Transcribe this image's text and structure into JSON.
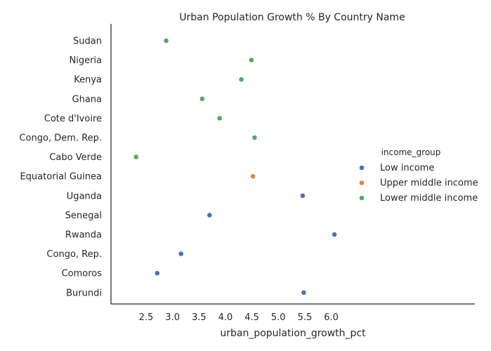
{
  "chart_data": {
    "type": "scatter",
    "title": "Urban Population Growth % By Country Name",
    "xlabel": "urban_population_growth_pct",
    "ylabel": "",
    "xlim": [
      2.1,
      6.3
    ],
    "xticks": [
      "2.5",
      "3.0",
      "3.5",
      "4.0",
      "4.5",
      "5.0",
      "5.5",
      "6.0"
    ],
    "categories": [
      "Sudan",
      "Nigeria",
      "Kenya",
      "Ghana",
      "Cote d'Ivoire",
      "Congo, Dem. Rep.",
      "Cabo Verde",
      "Equatorial Guinea",
      "Uganda",
      "Senegal",
      "Rwanda",
      "Congo, Rep.",
      "Comoros",
      "Burundi"
    ],
    "grid": false,
    "legend": {
      "title": "income_group",
      "placement": "right"
    },
    "series": [
      {
        "name": "Low income",
        "color": "#4c72b0",
        "points": [
          {
            "category": "Uganda",
            "x": 5.46
          },
          {
            "category": "Senegal",
            "x": 3.7
          },
          {
            "category": "Rwanda",
            "x": 6.06
          },
          {
            "category": "Congo, Rep.",
            "x": 3.16
          },
          {
            "category": "Comoros",
            "x": 2.71
          },
          {
            "category": "Burundi",
            "x": 5.48
          }
        ]
      },
      {
        "name": "Upper middle income",
        "color": "#dd8452",
        "points": [
          {
            "category": "Equatorial Guinea",
            "x": 4.52
          }
        ]
      },
      {
        "name": "Lower middle income",
        "color": "#55a868",
        "points": [
          {
            "category": "Sudan",
            "x": 2.88
          },
          {
            "category": "Nigeria",
            "x": 4.49
          },
          {
            "category": "Kenya",
            "x": 4.3
          },
          {
            "category": "Ghana",
            "x": 3.56
          },
          {
            "category": "Cote d'Ivoire",
            "x": 3.89
          },
          {
            "category": "Congo, Dem. Rep.",
            "x": 4.55
          },
          {
            "category": "Cabo Verde",
            "x": 2.31
          }
        ]
      }
    ]
  }
}
